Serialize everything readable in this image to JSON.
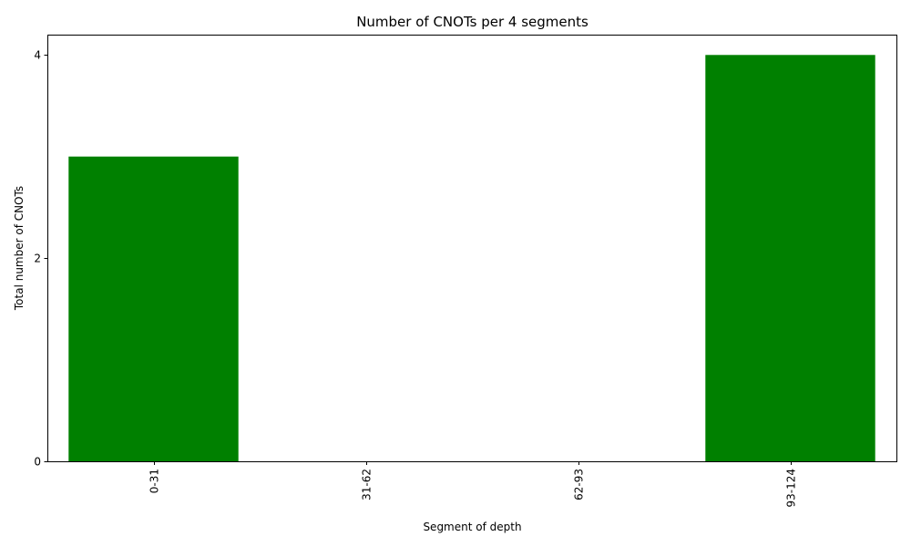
{
  "chart_data": {
    "type": "bar",
    "title": "Number of CNOTs per 4 segments",
    "xlabel": "Segment of depth",
    "ylabel": "Total number of CNOTs",
    "categories": [
      "0-31",
      "31-62",
      "62-93",
      "93-124"
    ],
    "values": [
      3,
      0,
      0,
      4
    ],
    "ylim": [
      0,
      4.2
    ],
    "yticks": [
      0,
      2,
      4
    ],
    "bar_color": "#008000",
    "grid": false,
    "legend": "none"
  }
}
